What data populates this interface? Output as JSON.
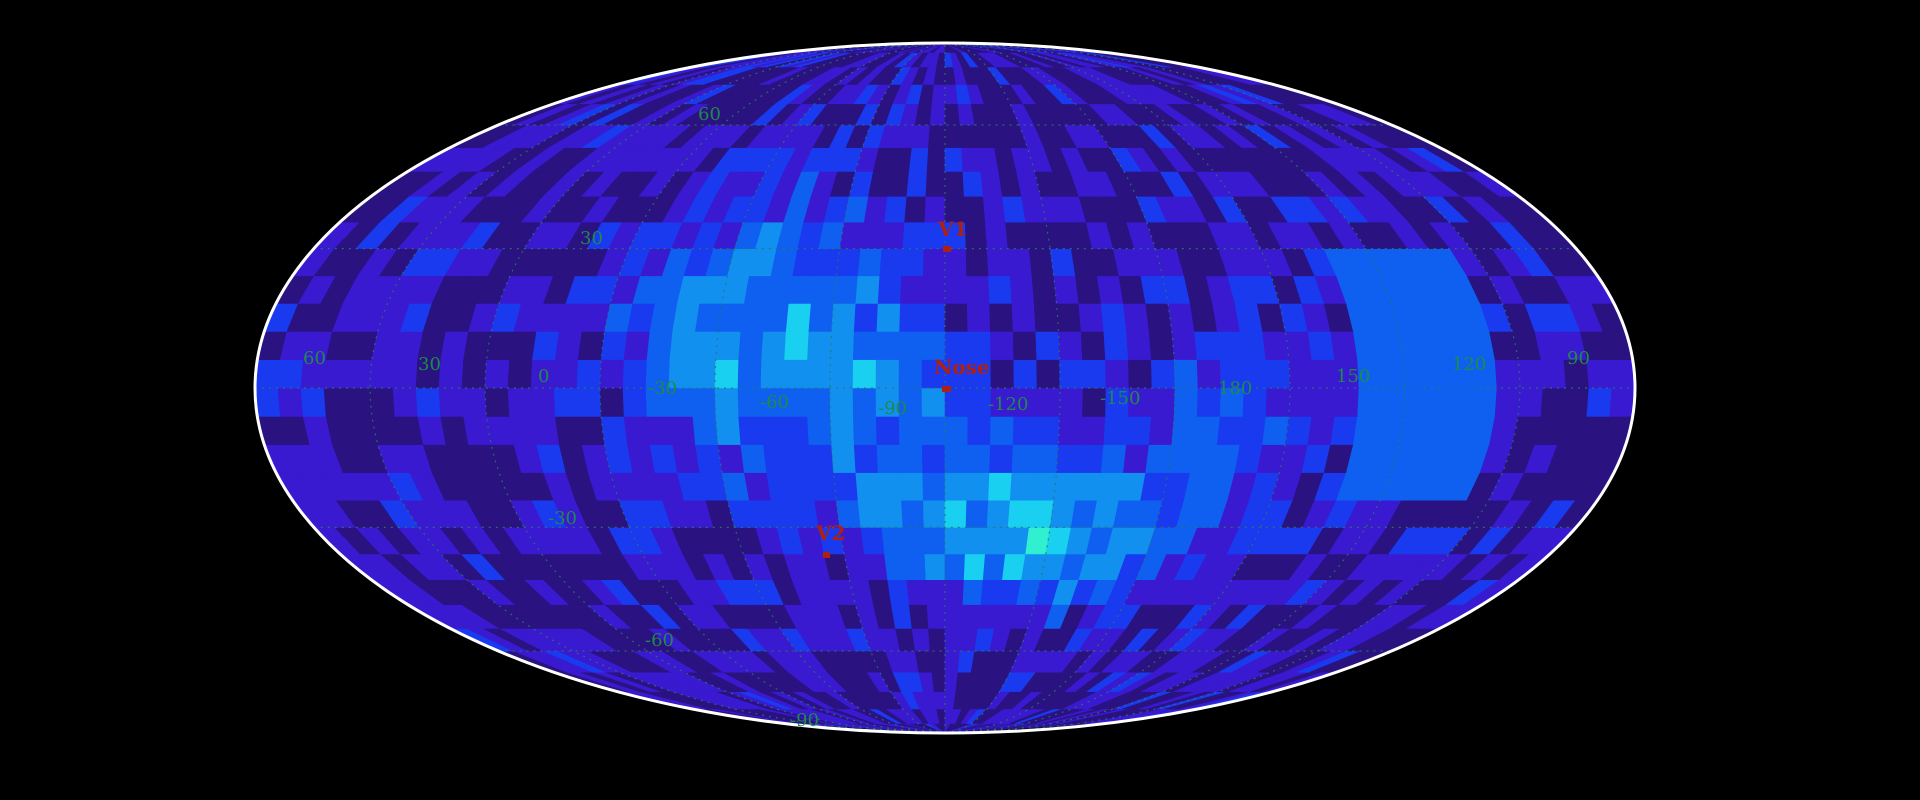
{
  "map": {
    "projection": "mollweide",
    "background_color": "#000000",
    "border_color": "#ffffff",
    "grid_color": "#2a7a5a",
    "label_color": "#1f8a4a",
    "marker_color": "#b02010",
    "colormap": [
      "#2a1280",
      "#3a1ad0",
      "#1a3af0",
      "#0f60f0",
      "#1290f0",
      "#19d0f0",
      "#30f0d0",
      "#70f050",
      "#d0f020",
      "#ffb020",
      "#ff5020",
      "#f0f0f0"
    ],
    "longitude_labels": [
      "60",
      "30",
      "0",
      "-30",
      "-60",
      "-90",
      "-120",
      "-150",
      "180",
      "150",
      "120",
      "90"
    ],
    "latitude_labels": [
      "60",
      "30",
      "-30",
      "-60",
      "-90"
    ],
    "markers": [
      {
        "label": "V1",
        "lon_deg": 0,
        "lat_deg": 34
      },
      {
        "label": "Nose",
        "lon_deg": 0,
        "lat_deg": 0
      },
      {
        "label": "V2",
        "lon_deg": -30,
        "lat_deg": -34
      }
    ]
  }
}
